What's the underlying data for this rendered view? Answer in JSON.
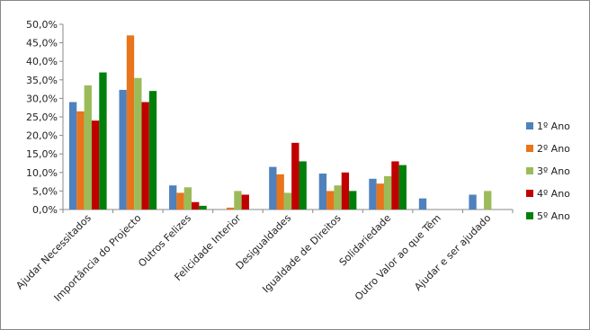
{
  "chart_data": {
    "type": "bar",
    "categories": [
      "Ajudar Necessitados",
      "Importância do Projecto",
      "Outros Felizes",
      "Felicidade Interior",
      "Desigualdades",
      "Igualdade de Direitos",
      "Solidariedade",
      "Outro Valor ao que Têm",
      "Ajudar e ser ajudado"
    ],
    "series": [
      {
        "name": "1º Ano",
        "color": "#4f81bd",
        "values": [
          29,
          32.3,
          6.5,
          0,
          11.5,
          9.7,
          8.3,
          3,
          4
        ]
      },
      {
        "name": "2º Ano",
        "color": "#e8741b",
        "values": [
          26.5,
          47,
          4.5,
          0.5,
          9.5,
          5,
          7,
          0,
          0
        ]
      },
      {
        "name": "3º Ano",
        "color": "#9bbb59",
        "values": [
          33.5,
          35.5,
          6,
          5,
          4.5,
          6.5,
          9,
          0,
          5
        ]
      },
      {
        "name": "4º Ano",
        "color": "#c00000",
        "values": [
          24,
          29,
          2,
          4,
          18,
          10,
          13,
          0,
          0
        ]
      },
      {
        "name": "5º Ano",
        "color": "#00800a",
        "values": [
          37,
          32,
          1,
          0,
          13,
          5,
          12,
          0,
          0
        ]
      }
    ],
    "ylim": [
      0,
      50
    ],
    "yticks": [
      {
        "value": 0,
        "label": "0,0%"
      },
      {
        "value": 5,
        "label": "5,0%"
      },
      {
        "value": 10,
        "label": "10,0%"
      },
      {
        "value": 15,
        "label": "15,0%"
      },
      {
        "value": 20,
        "label": "20,0%"
      },
      {
        "value": 25,
        "label": "25,0%"
      },
      {
        "value": 30,
        "label": "30,0%"
      },
      {
        "value": 35,
        "label": "35,0%"
      },
      {
        "value": 40,
        "label": "40,0%"
      },
      {
        "value": 45,
        "label": "45,0%"
      },
      {
        "value": 50,
        "label": "50,0%"
      }
    ],
    "grid": false,
    "legend": "right"
  }
}
